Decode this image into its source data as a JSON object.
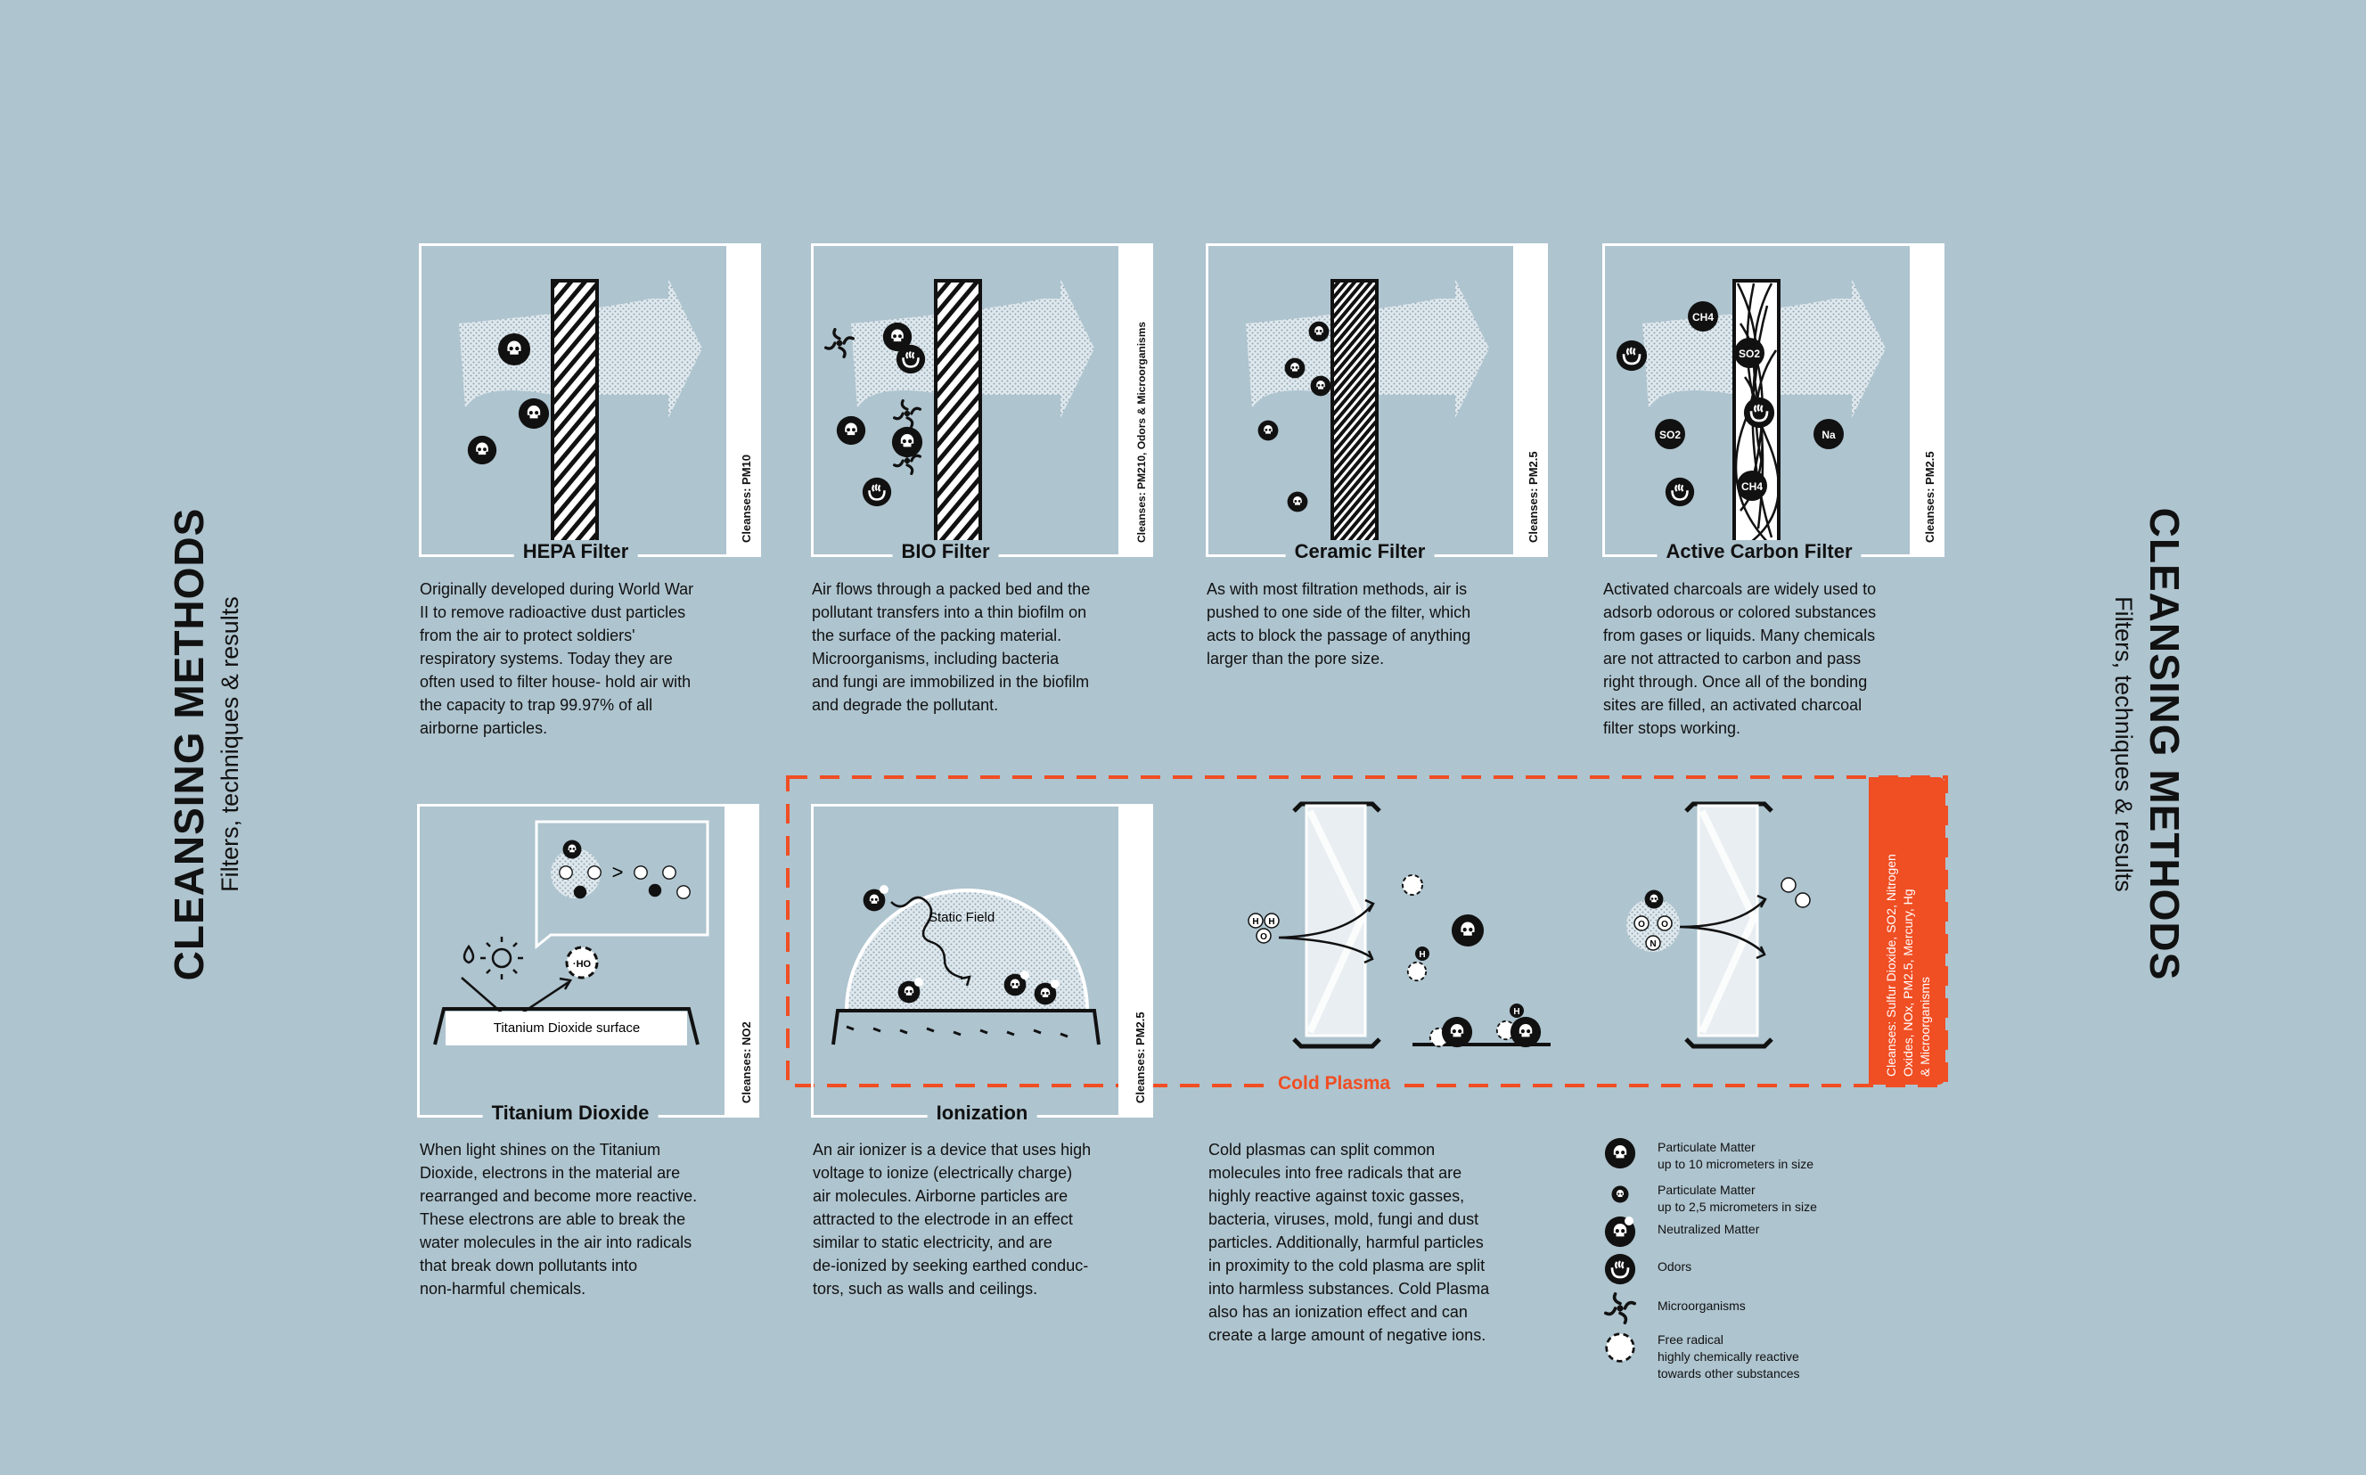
{
  "header": {
    "title": "CLEANSING METHODS",
    "subtitle": "Filters, techniques & results"
  },
  "panels": [
    {
      "title": "HEPA Filter",
      "cleanses": "Cleanses: PM10",
      "description": [
        "Originally developed during World War",
        "II to remove radioactive dust particles",
        "from the air to protect soldiers'",
        "respiratory systems. Today they are",
        "often used to filter house- hold air with",
        "the capacity to trap 99.97% of all",
        "airborne particles."
      ]
    },
    {
      "title": "BIO Filter",
      "cleanses": "Cleanses: PM210, Odors & Microorganisms",
      "description": [
        "Air flows through a packed bed and the",
        "pollutant transfers into a thin biofilm on",
        "the surface of the packing material.",
        "Microorganisms, including bacteria",
        "and fungi are immobilized in the biofilm",
        "and degrade the pollutant."
      ]
    },
    {
      "title": "Ceramic Filter",
      "cleanses": "Cleanses: PM2.5",
      "description": [
        "As with most filtration methods, air is",
        "pushed to one side of the filter, which",
        "acts to block the passage of anything",
        "larger than the pore size."
      ]
    },
    {
      "title": "Active Carbon Filter",
      "cleanses": "Cleanses: PM2.5",
      "description": [
        "Activated charcoals are widely used to",
        "adsorb odorous or colored substances",
        "from gases or liquids. Many chemicals",
        "are not attracted to carbon and pass",
        "right through. Once all of the bonding",
        "sites are filled, an activated charcoal",
        "filter stops working."
      ]
    },
    {
      "title": "Titanium Dioxide",
      "cleanses": "Cleanses: NO2",
      "surface_label": "Titanium Dioxide surface",
      "description": [
        "When light shines on the Titanium",
        "Dioxide, electrons in the material are",
        "rearranged and become more reactive.",
        "These electrons are able to break the",
        "water molecules in the air into radicals",
        "that break down pollutants into",
        "non-harmful chemicals."
      ]
    },
    {
      "title": "Ionization",
      "cleanses": "Cleanses: PM2.5",
      "field_label": "Static Field",
      "description": [
        "An air ionizer is a device that uses high",
        "voltage to ionize (electrically charge)",
        "air molecules. Airborne particles are",
        "attracted to the electrode in an effect",
        "similar to static electricity, and are",
        "de-ionized by seeking earthed conduc-",
        "tors, such as walls and ceilings."
      ]
    }
  ],
  "cold_plasma": {
    "label": "Cold Plasma",
    "cleanses": [
      "Cleanses: Sulfur Dioxide, SO2, Nitrogen",
      "Oxides, NOx,  PM2.5, Mercury, Hg",
      "& Microorganisms"
    ],
    "description": [
      "Cold plasmas can split common",
      "molecules into free radicals that are",
      "highly reactive against toxic gasses,",
      "bacteria, viruses, mold, fungi and dust",
      "particles. Additionally, harmful particles",
      "in proximity to the cold plasma are split",
      "into harmless substances. Cold Plasma",
      "also has an ionization effect and can",
      "create a large amount of negative ions."
    ]
  },
  "molecule_labels": {
    "ch4": "CH4",
    "so2": "SO2",
    "na": "Na",
    "o": "O",
    "n": "N",
    "h": "H",
    "ho": "·HO"
  },
  "legend": [
    {
      "icon": "skull-large-icon",
      "lines": [
        "Particulate Matter",
        "up to 10 micrometers in size"
      ]
    },
    {
      "icon": "skull-small-icon",
      "lines": [
        "Particulate Matter",
        "up to 2,5 micrometers in size"
      ]
    },
    {
      "icon": "neutralized-icon",
      "lines": [
        "Neutralized Matter"
      ]
    },
    {
      "icon": "odor-icon",
      "lines": [
        "Odors"
      ]
    },
    {
      "icon": "microorganism-icon",
      "lines": [
        "Microorganisms"
      ]
    },
    {
      "icon": "free-radical-icon",
      "lines": [
        "Free radical",
        "highly chemically reactive",
        "towards other substances"
      ]
    }
  ],
  "colors": {
    "background": "#aec4cf",
    "accent": "#f04e23",
    "ink": "#111111",
    "white": "#ffffff"
  }
}
